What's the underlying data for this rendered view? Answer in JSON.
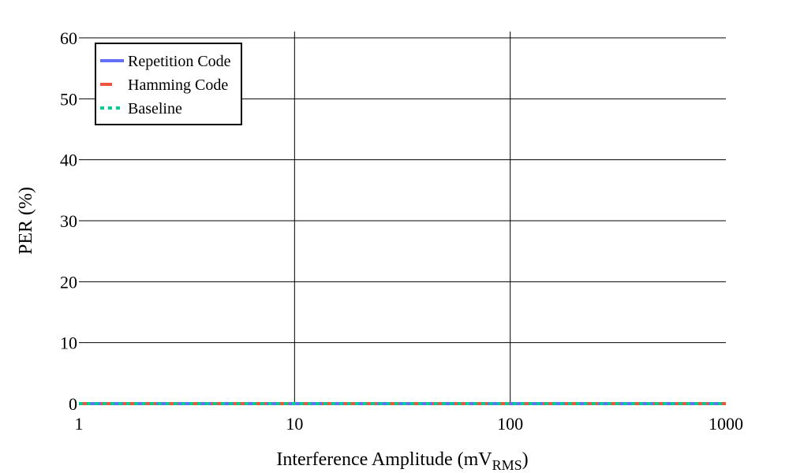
{
  "chart_data": {
    "type": "line",
    "xlabel_main": "Interference Amplitude (mV",
    "xlabel_sub": "RMS",
    "xlabel_end": ")",
    "ylabel": "PER (%)",
    "x_scale": "log",
    "xlim": [
      1,
      1000
    ],
    "ylim": [
      0,
      60
    ],
    "x_ticks": [
      1,
      10,
      100,
      1000
    ],
    "x_tick_labels": [
      "1",
      "10",
      "100",
      "1000"
    ],
    "y_ticks": [
      0,
      10,
      20,
      30,
      40,
      50,
      60
    ],
    "y_tick_labels": [
      "0",
      "10",
      "20",
      "30",
      "40",
      "50",
      "60"
    ],
    "grid": true,
    "legend_position": "top-left",
    "series": [
      {
        "name": "Repetition Code",
        "color": "#636efa",
        "dash": "solid",
        "x": [
          1,
          10,
          100,
          1000
        ],
        "y": [
          0,
          0,
          0,
          0
        ]
      },
      {
        "name": "Hamming Code",
        "color": "#ef553b",
        "dash": "dash",
        "x": [
          1,
          10,
          100,
          1000
        ],
        "y": [
          0,
          0,
          0,
          0
        ]
      },
      {
        "name": "Baseline",
        "color": "#00cc96",
        "dash": "dot",
        "x": [
          1,
          10,
          100,
          1000
        ],
        "y": [
          0,
          0,
          0,
          0
        ]
      }
    ]
  }
}
